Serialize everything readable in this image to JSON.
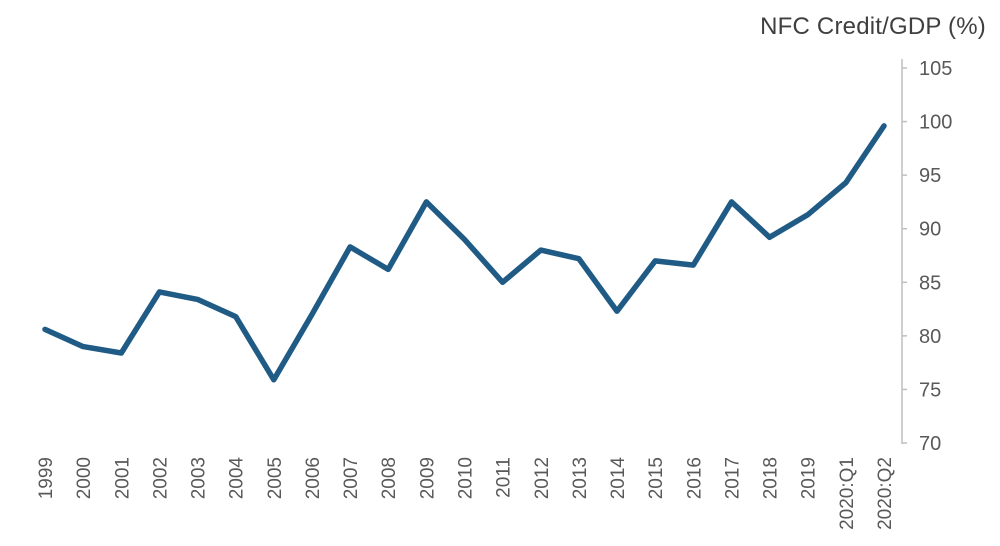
{
  "chart_data": {
    "type": "line",
    "title": "NFC Credit/GDP (%)",
    "x": [
      "1999",
      "2000",
      "2001",
      "2002",
      "2003",
      "2004",
      "2005",
      "2006",
      "2007",
      "2008",
      "2009",
      "2010",
      "2011",
      "2012",
      "2013",
      "2014",
      "2015",
      "2016",
      "2017",
      "2018",
      "2019",
      "2020:Q1",
      "2020:Q2"
    ],
    "series": [
      {
        "name": "NFC Credit/GDP",
        "values": [
          80.6,
          79.0,
          78.4,
          84.1,
          83.4,
          81.8,
          75.9,
          82.0,
          88.3,
          86.2,
          92.5,
          89.0,
          85.0,
          88.0,
          87.2,
          82.3,
          87.0,
          86.6,
          92.5,
          89.2,
          91.3,
          94.3,
          99.6
        ]
      }
    ],
    "xlabel": "",
    "ylabel": "",
    "ylim": [
      70,
      105
    ],
    "yticks": [
      70,
      75,
      80,
      85,
      90,
      95,
      100,
      105
    ],
    "grid": false,
    "legend_position": "none",
    "axis_side": "right",
    "x_label_rotation": -90,
    "line_color": "#1f5b85",
    "axis_color": "#bfbfbf",
    "label_color": "#595959",
    "title_color": "#3f3f3f"
  }
}
